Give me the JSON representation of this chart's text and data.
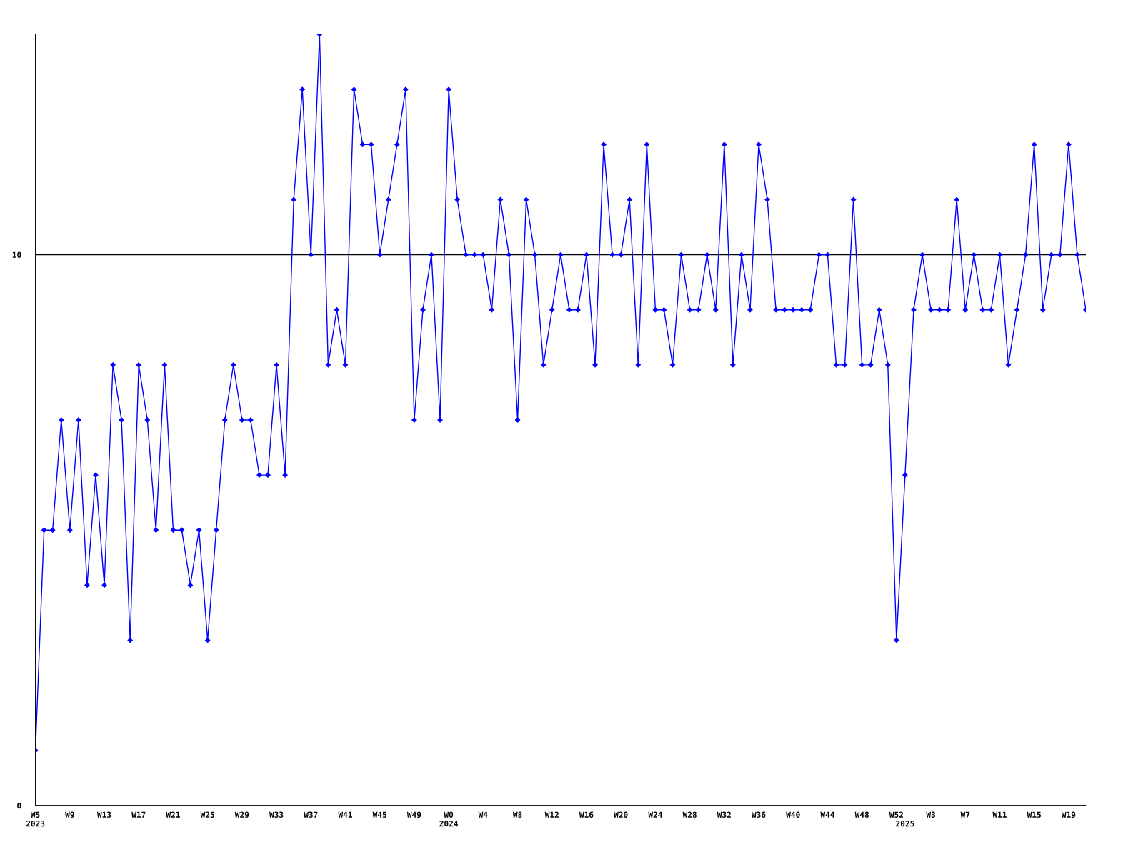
{
  "chart_data": {
    "type": "line",
    "categories": [
      "W5\n2023",
      null,
      null,
      null,
      "W9",
      null,
      null,
      null,
      "W13",
      null,
      null,
      null,
      "W17",
      null,
      null,
      null,
      "W21",
      null,
      null,
      null,
      "W25",
      null,
      null,
      null,
      "W29",
      null,
      null,
      null,
      "W33",
      null,
      null,
      null,
      "W37",
      null,
      null,
      null,
      "W41",
      null,
      null,
      null,
      "W45",
      null,
      null,
      null,
      "W49",
      null,
      null,
      null,
      "W0\n2024",
      null,
      null,
      null,
      "W4",
      null,
      null,
      null,
      "W8",
      null,
      null,
      null,
      "W12",
      null,
      null,
      null,
      "W16",
      null,
      null,
      null,
      "W20",
      null,
      null,
      null,
      "W24",
      null,
      null,
      null,
      "W28",
      null,
      null,
      null,
      "W32",
      null,
      null,
      null,
      "W36",
      null,
      null,
      null,
      "W40",
      null,
      null,
      null,
      "W44",
      null,
      null,
      null,
      "W48",
      null,
      null,
      null,
      "W52",
      "\n2025",
      null,
      null,
      "W3",
      null,
      null,
      null,
      "W7",
      null,
      null,
      null,
      "W11",
      null,
      null,
      null,
      "W15",
      null,
      null,
      null,
      "W19",
      null,
      null
    ],
    "series": [
      {
        "color": "#0000ff",
        "values": [
          1,
          5,
          5,
          7,
          5,
          7,
          4,
          6,
          4,
          8,
          7,
          3,
          8,
          7,
          5,
          8,
          5,
          5,
          4,
          5,
          3,
          5,
          7,
          8,
          7,
          7,
          6,
          6,
          8,
          6,
          11,
          13,
          10,
          14,
          8,
          9,
          8,
          13,
          12,
          12,
          10,
          11,
          12,
          13,
          7,
          9,
          10,
          7,
          13,
          11,
          10,
          10,
          10,
          9,
          11,
          10,
          7,
          11,
          10,
          8,
          9,
          10,
          9,
          9,
          10,
          8,
          12,
          10,
          10,
          11,
          8,
          12,
          9,
          9,
          8,
          10,
          9,
          9,
          10,
          9,
          12,
          8,
          10,
          9,
          12,
          11,
          9,
          9,
          9,
          9,
          9,
          10,
          10,
          8,
          8,
          11,
          8,
          8,
          9,
          8,
          3,
          6,
          9,
          10,
          9,
          9,
          9,
          11,
          9,
          10,
          9,
          9,
          10,
          8,
          9,
          10,
          12,
          9,
          10,
          10,
          12,
          10,
          9
        ]
      }
    ],
    "ylim": [
      0,
      14
    ],
    "yticks": [
      0,
      10
    ],
    "grid": "y",
    "marker": "diamond",
    "line_style": "solid",
    "legend": false
  }
}
